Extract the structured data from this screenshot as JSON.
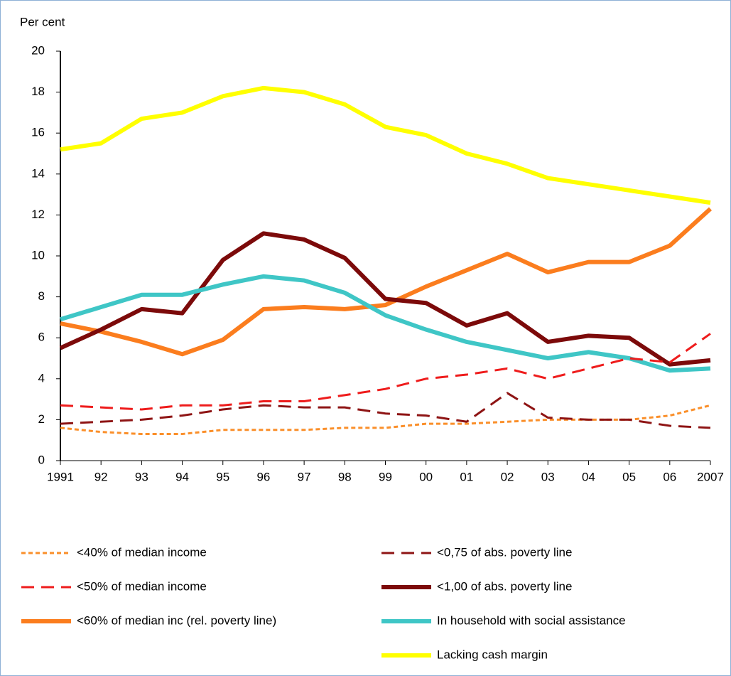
{
  "chart_data": {
    "type": "line",
    "y_label": "Per cent",
    "categories": [
      "1991",
      "92",
      "93",
      "94",
      "95",
      "96",
      "97",
      "98",
      "99",
      "00",
      "01",
      "02",
      "03",
      "04",
      "05",
      "06",
      "2007"
    ],
    "ylim": [
      0,
      20
    ],
    "yticks": [
      0,
      2,
      4,
      6,
      8,
      10,
      12,
      14,
      16,
      18,
      20
    ],
    "grid": false,
    "series": [
      {
        "name": "<40% of median income",
        "color": "#fa8f2a",
        "style": "dotted",
        "values": [
          1.6,
          1.4,
          1.3,
          1.3,
          1.5,
          1.5,
          1.5,
          1.6,
          1.6,
          1.8,
          1.8,
          1.9,
          2.0,
          2.0,
          2.0,
          2.2,
          2.7
        ]
      },
      {
        "name": "<50% of median income",
        "color": "#ee1c1c",
        "style": "dashed",
        "values": [
          2.7,
          2.6,
          2.5,
          2.7,
          2.7,
          2.9,
          2.9,
          3.2,
          3.5,
          4.0,
          4.2,
          4.5,
          4.0,
          4.5,
          5.0,
          4.8,
          6.2
        ]
      },
      {
        "name": "<60% of median inc (rel. poverty line)",
        "color": "#fb7d1e",
        "style": "solid",
        "values": [
          6.7,
          6.3,
          5.8,
          5.2,
          5.9,
          7.4,
          7.5,
          7.4,
          7.6,
          8.5,
          9.3,
          10.1,
          9.2,
          9.7,
          9.7,
          10.5,
          12.3
        ]
      },
      {
        "name": "<0,75 of abs. poverty line",
        "color": "#8e1414",
        "style": "dashed",
        "values": [
          1.8,
          1.9,
          2.0,
          2.2,
          2.5,
          2.7,
          2.6,
          2.6,
          2.3,
          2.2,
          1.9,
          3.3,
          2.1,
          2.0,
          2.0,
          1.7,
          1.6
        ]
      },
      {
        "name": "<1,00 of abs. poverty line",
        "color": "#7c0a0a",
        "style": "solid",
        "values": [
          5.5,
          6.4,
          7.4,
          7.2,
          9.8,
          11.1,
          10.8,
          9.9,
          7.9,
          7.7,
          6.6,
          7.2,
          5.8,
          6.1,
          6.0,
          4.7,
          4.9
        ]
      },
      {
        "name": "In household with social assistance",
        "color": "#3fc6c6",
        "style": "solid",
        "values": [
          6.9,
          7.5,
          8.1,
          8.1,
          8.6,
          9.0,
          8.8,
          8.2,
          7.1,
          6.4,
          5.8,
          5.4,
          5.0,
          5.3,
          5.0,
          4.4,
          4.5
        ]
      },
      {
        "name": "Lacking cash margin",
        "color": "#ffff00",
        "style": "solid",
        "values": [
          15.2,
          15.5,
          16.7,
          17.0,
          17.8,
          18.2,
          18.0,
          17.4,
          16.3,
          15.9,
          15.0,
          14.5,
          13.8,
          13.5,
          13.2,
          12.9,
          12.6
        ]
      }
    ]
  }
}
